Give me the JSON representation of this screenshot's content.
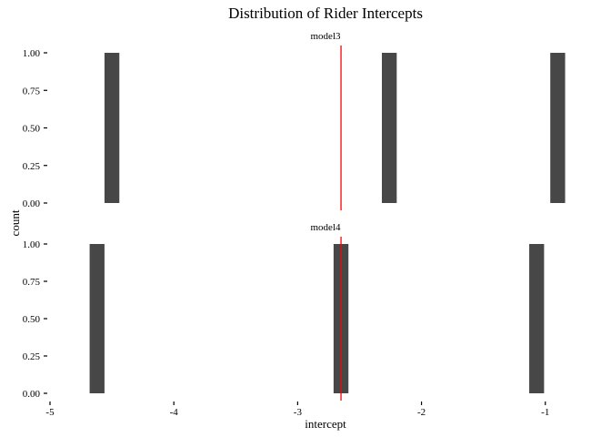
{
  "chart_data": {
    "type": "bar",
    "title": "Distribution of Rider Intercepts",
    "xlabel": "intercept",
    "ylabel": "count",
    "xlim": [
      -5,
      -0.8
    ],
    "ylim": [
      0,
      1
    ],
    "x_ticks": [
      -5,
      -4,
      -3,
      -2,
      -1
    ],
    "x_tick_labels": [
      "-5",
      "-4",
      "-3",
      "-2",
      "-1"
    ],
    "y_ticks": [
      0,
      0.25,
      0.5,
      0.75,
      1
    ],
    "y_tick_labels": [
      "0.00",
      "0.25",
      "0.50",
      "0.75",
      "1.00"
    ],
    "grid": false,
    "bar_color": "#474747",
    "vline_color": "#ff0000",
    "bin_width": 0.12,
    "panels": [
      {
        "name": "model3",
        "bars": [
          {
            "x": -4.5,
            "count": 1
          },
          {
            "x": -2.26,
            "count": 1
          },
          {
            "x": -0.9,
            "count": 1
          }
        ],
        "vline": -2.65
      },
      {
        "name": "model4",
        "bars": [
          {
            "x": -4.62,
            "count": 1
          },
          {
            "x": -2.65,
            "count": 1
          },
          {
            "x": -1.07,
            "count": 1
          }
        ],
        "vline": -2.65
      }
    ]
  }
}
